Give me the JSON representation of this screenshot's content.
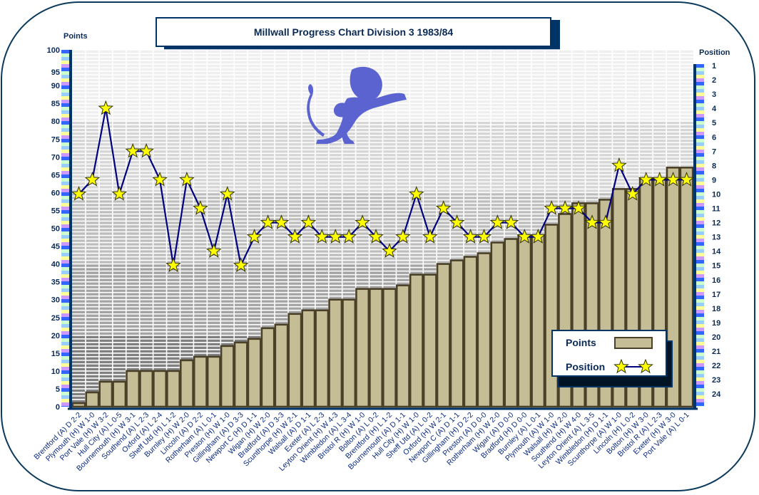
{
  "chart_data": {
    "type": "bar",
    "title": "Millwall Progress Chart Division 3 1983/84",
    "ylabel": "Points",
    "y2label": "Position",
    "ylim": [
      0,
      100
    ],
    "yticks": [
      0,
      5,
      10,
      15,
      20,
      25,
      30,
      35,
      40,
      45,
      50,
      55,
      60,
      65,
      70,
      75,
      80,
      85,
      90,
      95,
      100
    ],
    "y2lim": [
      1,
      24
    ],
    "y2ticks": [
      1,
      2,
      3,
      4,
      5,
      6,
      7,
      8,
      9,
      10,
      11,
      12,
      13,
      14,
      15,
      16,
      17,
      18,
      19,
      20,
      21,
      22,
      23,
      24
    ],
    "y2_inverted": true,
    "grid": true,
    "legend_position": "bottom-right",
    "categories": [
      "Brentford (A) D 2-2",
      "Plymouth (H) W 1-0",
      "Port Vale (H) W 3-2",
      "Hull City (A) L 0-5",
      "Bournemouth (H) W 3-1",
      "Southend (A) L 2-3",
      "Oxford (A) L 2-4",
      "Sheff Utd (H) L 1-2",
      "Burnley (H) W 2-0",
      "Lincoln (A) D 2-2",
      "Rotherham (A) L 0-1",
      "Preston (H) W 1-0",
      "Gillingham (A) D 3-3",
      "Newport C (H) D 1-1",
      "Wigan (H) W 2-0",
      "Bradford (A) D 3-3",
      "Scunthorpe (H) W 2-1",
      "Walsall (A) D 1-1",
      "Exeter (A) L 2-3",
      "Leyton Orient (H) W 4-3",
      "Wimbledon (A) L 3-4",
      "Bristol R (H) W 1-0",
      "Bolton (A) L 0-2",
      "Brentford (H) L 1-2",
      "Bournemouth (A) D 1-1",
      "Hull City (H) W 1-0",
      "Sheff Utd (A) L 0-2",
      "Oxford (H) W 2-1",
      "Newport C (A) D 1-1",
      "Gillingham (H) D 2-2",
      "Preston (A) D 0-0",
      "Rotherham (H) W 2-0",
      "Wigan (A) D 0-0",
      "Bradford (H) D 0-0",
      "Burnley (A) L 0-1",
      "Plymouth (A) W 1-0",
      "Walsall (H) W 2-0",
      "Southend (H) W 4-0",
      "Leyton Orient (A) L 3-5",
      "Wimbledon (H) D 1-1",
      "Scunthorpe (A) W 1-0",
      "Lincoln (H) L 0-2",
      "Bolton (H) W 3-0",
      "Bristol R (A) L 2-3",
      "Exeter (H) W 3-0",
      "Port Vale (A) L 0-1"
    ],
    "series": [
      {
        "name": "Points",
        "type": "bar",
        "color": "#c5bd96",
        "values": [
          1,
          4,
          7,
          7,
          10,
          10,
          10,
          10,
          13,
          14,
          14,
          17,
          18,
          19,
          22,
          23,
          26,
          27,
          27,
          30,
          30,
          33,
          33,
          33,
          34,
          37,
          37,
          40,
          41,
          42,
          43,
          46,
          47,
          48,
          48,
          51,
          54,
          57,
          57,
          58,
          61,
          61,
          64,
          64,
          67,
          67
        ]
      },
      {
        "name": "Position",
        "type": "line",
        "axis": "right",
        "color": "#000080",
        "marker": "star",
        "marker_color": "#ffff00",
        "values": [
          10,
          9,
          4,
          10,
          7,
          7,
          9,
          15,
          9,
          11,
          14,
          10,
          15,
          13,
          12,
          12,
          13,
          12,
          13,
          13,
          13,
          12,
          13,
          14,
          13,
          10,
          13,
          11,
          12,
          13,
          13,
          12,
          12,
          13,
          13,
          11,
          11,
          11,
          12,
          12,
          8,
          10,
          9,
          9,
          9,
          9
        ]
      }
    ]
  },
  "colors": {
    "frame": "#0b3a5c",
    "axis": "#003366",
    "bar_fill": "#c5bd96",
    "bar_edge": "#4a4128",
    "line": "#000080",
    "star": "#ffff00",
    "bands": [
      "#808080",
      "#a4a4a4",
      "#bdbdbd",
      "#d6d6d6",
      "#efefef"
    ],
    "axis_stripes": [
      "#3366ff",
      "#ccffcc",
      "#99ccff",
      "#ffff99",
      "#cc99ff"
    ]
  },
  "legend": {
    "points_label": "Points",
    "position_label": "Position"
  },
  "logo": "lion-crest"
}
